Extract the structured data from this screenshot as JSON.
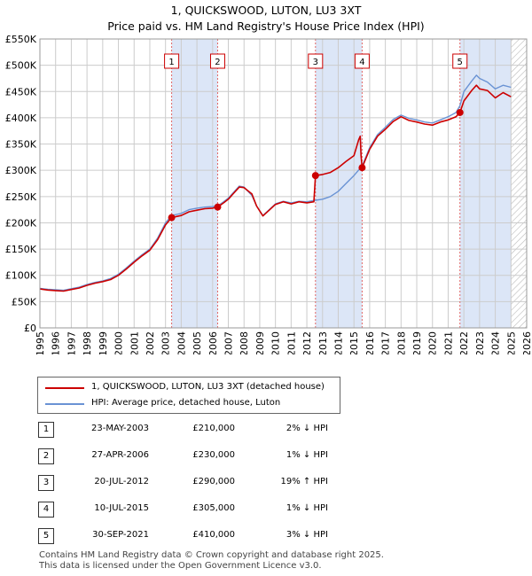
{
  "title": "1, QUICKSWOOD, LUTON, LU3 3XT",
  "subtitle": "Price paid vs. HM Land Registry's House Price Index (HPI)",
  "colors": {
    "property": "#cc0000",
    "hpi": "#6a93d4",
    "shade": "#dce6f7",
    "grid": "#cccccc"
  },
  "chart_data": {
    "type": "line",
    "title": "1, QUICKSWOOD, LUTON, LU3 3XT",
    "subtitle": "Price paid vs. HM Land Registry's House Price Index (HPI)",
    "xlim": [
      1995,
      2026
    ],
    "ylim": [
      0,
      550000
    ],
    "x_ticks": [
      "1995",
      "1996",
      "1997",
      "1998",
      "1999",
      "2000",
      "2001",
      "2002",
      "2003",
      "2004",
      "2005",
      "2006",
      "2007",
      "2008",
      "2009",
      "2010",
      "2011",
      "2012",
      "2013",
      "2014",
      "2015",
      "2016",
      "2017",
      "2018",
      "2019",
      "2020",
      "2021",
      "2022",
      "2023",
      "2024",
      "2025",
      "2026"
    ],
    "y_ticks": [
      {
        "value": 0,
        "label": "£0"
      },
      {
        "value": 50000,
        "label": "£50K"
      },
      {
        "value": 100000,
        "label": "£100K"
      },
      {
        "value": 150000,
        "label": "£150K"
      },
      {
        "value": 200000,
        "label": "£200K"
      },
      {
        "value": 250000,
        "label": "£250K"
      },
      {
        "value": 300000,
        "label": "£300K"
      },
      {
        "value": 350000,
        "label": "£350K"
      },
      {
        "value": 400000,
        "label": "£400K"
      },
      {
        "value": 450000,
        "label": "£450K"
      },
      {
        "value": 500000,
        "label": "£500K"
      },
      {
        "value": 550000,
        "label": "£550K"
      }
    ],
    "grid": true,
    "legend_position": "bottom-left",
    "shaded_regions": [
      [
        2003.39,
        2006.32
      ],
      [
        2012.55,
        2015.52
      ],
      [
        2021.75,
        2025.0
      ]
    ],
    "hatched_from": 2025.0,
    "series": [
      {
        "name": "1, QUICKSWOOD, LUTON, LU3 3XT (detached house)",
        "color": "#cc0000",
        "points": [
          [
            1995.0,
            74000
          ],
          [
            1995.5,
            72000
          ],
          [
            1996.0,
            71000
          ],
          [
            1996.5,
            70000
          ],
          [
            1997.0,
            73000
          ],
          [
            1997.5,
            76000
          ],
          [
            1998.0,
            81000
          ],
          [
            1998.5,
            85000
          ],
          [
            1999.0,
            88000
          ],
          [
            1999.5,
            92000
          ],
          [
            2000.0,
            100000
          ],
          [
            2000.5,
            112000
          ],
          [
            2001.0,
            125000
          ],
          [
            2001.5,
            137000
          ],
          [
            2002.0,
            148000
          ],
          [
            2002.5,
            168000
          ],
          [
            2003.0,
            196000
          ],
          [
            2003.39,
            210000
          ],
          [
            2003.7,
            212000
          ],
          [
            2004.0,
            214000
          ],
          [
            2004.5,
            221000
          ],
          [
            2005.0,
            224000
          ],
          [
            2005.5,
            227000
          ],
          [
            2006.0,
            228000
          ],
          [
            2006.32,
            230000
          ],
          [
            2006.7,
            238000
          ],
          [
            2007.0,
            245000
          ],
          [
            2007.3,
            255000
          ],
          [
            2007.7,
            268000
          ],
          [
            2008.0,
            267000
          ],
          [
            2008.5,
            255000
          ],
          [
            2008.8,
            232000
          ],
          [
            2009.2,
            213000
          ],
          [
            2009.6,
            224000
          ],
          [
            2010.0,
            235000
          ],
          [
            2010.5,
            240000
          ],
          [
            2011.0,
            236000
          ],
          [
            2011.5,
            240000
          ],
          [
            2012.0,
            238000
          ],
          [
            2012.45,
            240000
          ],
          [
            2012.55,
            290000
          ],
          [
            2013.0,
            292000
          ],
          [
            2013.5,
            296000
          ],
          [
            2014.0,
            305000
          ],
          [
            2014.5,
            317000
          ],
          [
            2015.0,
            328000
          ],
          [
            2015.3,
            358000
          ],
          [
            2015.4,
            365000
          ],
          [
            2015.45,
            328000
          ],
          [
            2015.52,
            305000
          ],
          [
            2016.0,
            340000
          ],
          [
            2016.5,
            365000
          ],
          [
            2017.0,
            378000
          ],
          [
            2017.5,
            393000
          ],
          [
            2018.0,
            402000
          ],
          [
            2018.5,
            395000
          ],
          [
            2019.0,
            392000
          ],
          [
            2019.5,
            388000
          ],
          [
            2020.0,
            386000
          ],
          [
            2020.5,
            392000
          ],
          [
            2021.0,
            396000
          ],
          [
            2021.5,
            402000
          ],
          [
            2021.75,
            410000
          ],
          [
            2022.0,
            432000
          ],
          [
            2022.5,
            452000
          ],
          [
            2022.8,
            462000
          ],
          [
            2023.0,
            455000
          ],
          [
            2023.5,
            452000
          ],
          [
            2024.0,
            438000
          ],
          [
            2024.5,
            448000
          ],
          [
            2025.0,
            440000
          ]
        ]
      },
      {
        "name": "HPI: Average price, detached house, Luton",
        "color": "#6a93d4",
        "points": [
          [
            1995.0,
            75000
          ],
          [
            1995.5,
            73500
          ],
          [
            1996.0,
            72500
          ],
          [
            1996.5,
            71500
          ],
          [
            1997.0,
            74500
          ],
          [
            1997.5,
            77500
          ],
          [
            1998.0,
            82500
          ],
          [
            1998.5,
            86500
          ],
          [
            1999.0,
            89500
          ],
          [
            1999.5,
            94000
          ],
          [
            2000.0,
            102000
          ],
          [
            2000.5,
            114000
          ],
          [
            2001.0,
            127000
          ],
          [
            2001.5,
            139000
          ],
          [
            2002.0,
            150000
          ],
          [
            2002.5,
            171000
          ],
          [
            2003.0,
            200000
          ],
          [
            2003.39,
            214000
          ],
          [
            2003.7,
            216000
          ],
          [
            2004.0,
            218000
          ],
          [
            2004.5,
            225000
          ],
          [
            2005.0,
            228000
          ],
          [
            2005.5,
            230000
          ],
          [
            2006.0,
            231000
          ],
          [
            2006.32,
            232000
          ],
          [
            2006.7,
            240000
          ],
          [
            2007.0,
            247000
          ],
          [
            2007.3,
            257000
          ],
          [
            2007.7,
            270000
          ],
          [
            2008.0,
            268000
          ],
          [
            2008.5,
            252000
          ],
          [
            2008.8,
            232000
          ],
          [
            2009.2,
            214000
          ],
          [
            2009.6,
            225000
          ],
          [
            2010.0,
            236000
          ],
          [
            2010.5,
            241000
          ],
          [
            2011.0,
            238000
          ],
          [
            2011.5,
            241000
          ],
          [
            2012.0,
            240000
          ],
          [
            2012.55,
            243000
          ],
          [
            2013.0,
            245000
          ],
          [
            2013.5,
            250000
          ],
          [
            2014.0,
            260000
          ],
          [
            2014.5,
            275000
          ],
          [
            2015.0,
            290000
          ],
          [
            2015.52,
            308000
          ],
          [
            2016.0,
            343000
          ],
          [
            2016.5,
            368000
          ],
          [
            2017.0,
            382000
          ],
          [
            2017.5,
            397000
          ],
          [
            2018.0,
            405000
          ],
          [
            2018.5,
            399000
          ],
          [
            2019.0,
            396000
          ],
          [
            2019.5,
            392000
          ],
          [
            2020.0,
            390000
          ],
          [
            2020.5,
            396000
          ],
          [
            2021.0,
            402000
          ],
          [
            2021.5,
            410000
          ],
          [
            2021.75,
            423000
          ],
          [
            2022.0,
            450000
          ],
          [
            2022.5,
            470000
          ],
          [
            2022.8,
            481000
          ],
          [
            2023.0,
            475000
          ],
          [
            2023.5,
            468000
          ],
          [
            2024.0,
            455000
          ],
          [
            2024.5,
            462000
          ],
          [
            2025.0,
            458000
          ]
        ]
      }
    ],
    "markers": [
      {
        "label": "1",
        "x": 2003.39,
        "y": 210000
      },
      {
        "label": "2",
        "x": 2006.32,
        "y": 230000
      },
      {
        "label": "3",
        "x": 2012.55,
        "y": 290000
      },
      {
        "label": "4",
        "x": 2015.52,
        "y": 305000
      },
      {
        "label": "5",
        "x": 2021.75,
        "y": 410000
      }
    ]
  },
  "legend": [
    "1, QUICKSWOOD, LUTON, LU3 3XT (detached house)",
    "HPI: Average price, detached house, Luton"
  ],
  "transactions": [
    {
      "num": "1",
      "date": "23-MAY-2003",
      "price": "£210,000",
      "delta": "2% ↓ HPI"
    },
    {
      "num": "2",
      "date": "27-APR-2006",
      "price": "£230,000",
      "delta": "1% ↓ HPI"
    },
    {
      "num": "3",
      "date": "20-JUL-2012",
      "price": "£290,000",
      "delta": "19% ↑ HPI"
    },
    {
      "num": "4",
      "date": "10-JUL-2015",
      "price": "£305,000",
      "delta": "1% ↓ HPI"
    },
    {
      "num": "5",
      "date": "30-SEP-2021",
      "price": "£410,000",
      "delta": "3% ↓ HPI"
    }
  ],
  "footer": [
    "Contains HM Land Registry data © Crown copyright and database right 2025.",
    "This data is licensed under the Open Government Licence v3.0."
  ]
}
